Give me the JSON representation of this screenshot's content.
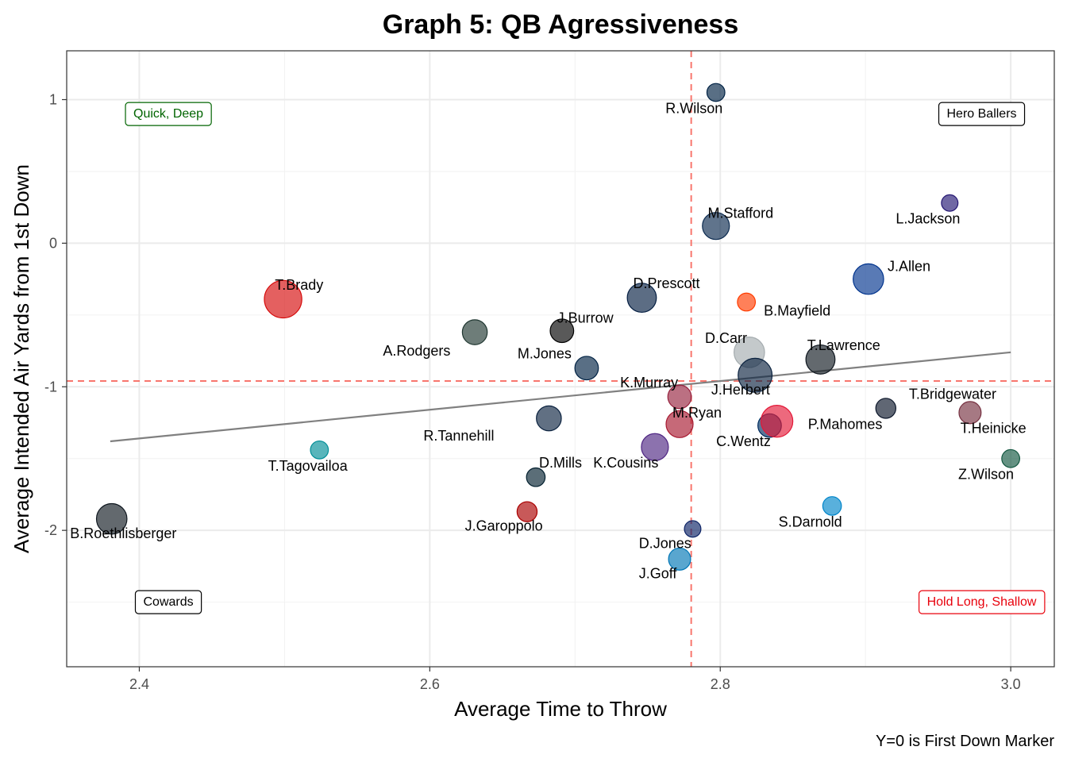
{
  "chart_data": {
    "type": "scatter",
    "title": "Graph 5: QB Agressiveness",
    "xlabel": "Average Time to Throw",
    "ylabel": "Average Intended Air Yards from 1st Down",
    "caption": "Y=0 is First Down Marker",
    "xlim": [
      2.35,
      3.03
    ],
    "ylim": [
      -2.95,
      1.34
    ],
    "x_ticks": [
      2.4,
      2.6,
      2.8,
      3.0
    ],
    "x_tick_labels": [
      "2.4",
      "2.6",
      "2.8",
      "3.0"
    ],
    "y_ticks": [
      -2,
      -1,
      0,
      1
    ],
    "y_tick_labels": [
      "-2",
      "-1",
      "0",
      "1"
    ],
    "grid": true,
    "reference_lines": {
      "vline_x": 2.78,
      "hline_y": -0.96,
      "color": "#f8766d"
    },
    "trend_line": {
      "x": [
        2.38,
        3.0
      ],
      "y": [
        -1.38,
        -0.76
      ]
    },
    "quadrant_labels": [
      {
        "text": "Quick, Deep",
        "x": 2.42,
        "y": 0.9,
        "color": "#006400"
      },
      {
        "text": "Hero Ballers",
        "x": 2.98,
        "y": 0.9,
        "color": "#000000"
      },
      {
        "text": "Cowards",
        "x": 2.42,
        "y": -2.5,
        "color": "#000000"
      },
      {
        "text": "Hold Long, Shallow",
        "x": 2.98,
        "y": -2.5,
        "color": "#e8000b"
      }
    ],
    "series": [
      {
        "name": "R.Wilson",
        "x": 2.797,
        "y": 1.05,
        "size": 1.2,
        "color": "#002244",
        "label_x": 2.782,
        "label_y": 0.94
      },
      {
        "name": "L.Jackson",
        "x": 2.958,
        "y": 0.28,
        "size": 1.0,
        "color": "#241773",
        "label_x": 2.943,
        "label_y": 0.17
      },
      {
        "name": "M.Stafford",
        "x": 2.797,
        "y": 0.12,
        "size": 2.5,
        "color": "#0b2a4f",
        "label_x": 2.814,
        "label_y": 0.21
      },
      {
        "name": "J.Allen",
        "x": 2.902,
        "y": -0.25,
        "size": 3.0,
        "color": "#00338d",
        "label_x": 2.93,
        "label_y": -0.16
      },
      {
        "name": "T.Brady",
        "x": 2.499,
        "y": -0.39,
        "size": 4.0,
        "color": "#d50a0a",
        "label_x": 2.51,
        "label_y": -0.29
      },
      {
        "name": "D.Prescott",
        "x": 2.746,
        "y": -0.38,
        "size": 2.8,
        "color": "#041e42",
        "label_x": 2.763,
        "label_y": -0.28
      },
      {
        "name": "B.Mayfield",
        "x": 2.818,
        "y": -0.41,
        "size": 1.2,
        "color": "#ff3c00",
        "label_x": 2.853,
        "label_y": -0.47
      },
      {
        "name": "A.Rodgers",
        "x": 2.631,
        "y": -0.62,
        "size": 2.2,
        "color": "#203731",
        "label_x": 2.591,
        "label_y": -0.75
      },
      {
        "name": "J.Burrow",
        "x": 2.691,
        "y": -0.61,
        "size": 2.0,
        "color": "#000000",
        "label_x": 2.707,
        "label_y": -0.52
      },
      {
        "name": "D.Carr",
        "x": 2.82,
        "y": -0.76,
        "size": 3.0,
        "color": "#a5acaf",
        "label_x": 2.804,
        "label_y": -0.66
      },
      {
        "name": "T.Lawrence",
        "x": 2.869,
        "y": -0.81,
        "size": 2.8,
        "color": "#101820",
        "label_x": 2.885,
        "label_y": -0.71
      },
      {
        "name": "M.Jones",
        "x": 2.708,
        "y": -0.87,
        "size": 2.0,
        "color": "#002244",
        "label_x": 2.679,
        "label_y": -0.77
      },
      {
        "name": "J.Herbert",
        "x": 2.824,
        "y": -0.92,
        "size": 3.5,
        "color": "#0c2340",
        "label_x": 2.814,
        "label_y": -1.02
      },
      {
        "name": "K.Murray",
        "x": 2.772,
        "y": -1.07,
        "size": 2.0,
        "color": "#97233f",
        "label_x": 2.751,
        "label_y": -0.97
      },
      {
        "name": "T.Bridgewater",
        "x": 2.914,
        "y": -1.15,
        "size": 1.5,
        "color": "#0b162a",
        "label_x": 2.96,
        "label_y": -1.05
      },
      {
        "name": "T.Heinicke",
        "x": 2.972,
        "y": -1.18,
        "size": 1.8,
        "color": "#773141",
        "label_x": 2.988,
        "label_y": -1.29
      },
      {
        "name": "R.Tannehill",
        "x": 2.682,
        "y": -1.22,
        "size": 2.2,
        "color": "#0c2340",
        "label_x": 2.62,
        "label_y": -1.34
      },
      {
        "name": "M.Ryan",
        "x": 2.772,
        "y": -1.26,
        "size": 2.5,
        "color": "#a71930",
        "label_x": 2.784,
        "label_y": -1.18
      },
      {
        "name": "C.Wentz",
        "x": 2.834,
        "y": -1.27,
        "size": 2.0,
        "color": "#002c5f",
        "label_x": 2.816,
        "label_y": -1.38
      },
      {
        "name": "P.Mahomes",
        "x": 2.839,
        "y": -1.24,
        "size": 3.2,
        "color": "#e31837",
        "label_x": 2.886,
        "label_y": -1.26
      },
      {
        "name": "K.Cousins",
        "x": 2.755,
        "y": -1.42,
        "size": 2.5,
        "color": "#4f2683",
        "label_x": 2.735,
        "label_y": -1.53
      },
      {
        "name": "T.Tagovailoa",
        "x": 2.524,
        "y": -1.44,
        "size": 1.2,
        "color": "#008e97",
        "label_x": 2.516,
        "label_y": -1.55
      },
      {
        "name": "Z.Wilson",
        "x": 3.0,
        "y": -1.5,
        "size": 1.2,
        "color": "#125740",
        "label_x": 2.983,
        "label_y": -1.61
      },
      {
        "name": "D.Mills",
        "x": 2.673,
        "y": -1.63,
        "size": 1.3,
        "color": "#03202f",
        "label_x": 2.69,
        "label_y": -1.53
      },
      {
        "name": "S.Darnold",
        "x": 2.877,
        "y": -1.83,
        "size": 1.3,
        "color": "#0085ca",
        "label_x": 2.862,
        "label_y": -1.94
      },
      {
        "name": "J.Garoppolo",
        "x": 2.667,
        "y": -1.87,
        "size": 1.5,
        "color": "#aa0000",
        "label_x": 2.651,
        "label_y": -1.97
      },
      {
        "name": "B.Roethlisberger",
        "x": 2.381,
        "y": -1.92,
        "size": 3.0,
        "color": "#101820",
        "label_x": 2.389,
        "label_y": -2.02
      },
      {
        "name": "D.Jones",
        "x": 2.781,
        "y": -1.99,
        "size": 1.0,
        "color": "#0b2265",
        "label_x": 2.762,
        "label_y": -2.09
      },
      {
        "name": "J.Goff",
        "x": 2.772,
        "y": -2.2,
        "size": 1.8,
        "color": "#0076b6",
        "label_x": 2.757,
        "label_y": -2.3
      }
    ]
  }
}
